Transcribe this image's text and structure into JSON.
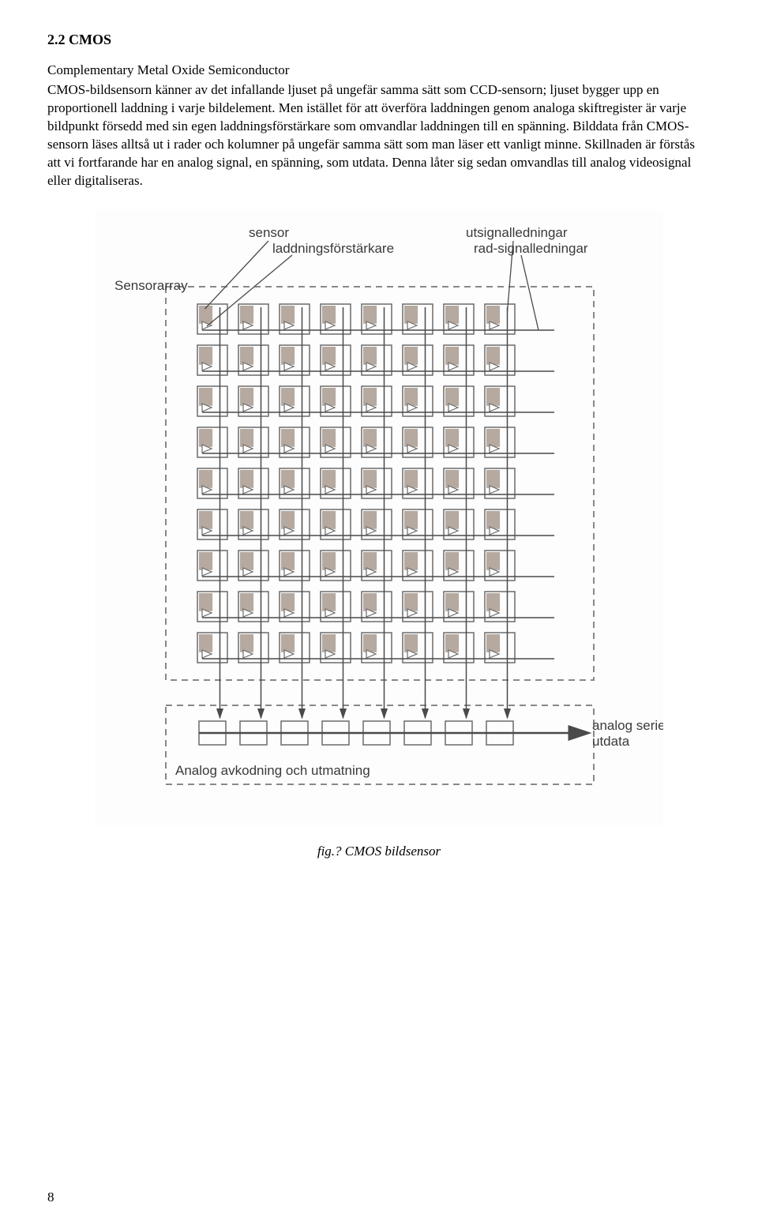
{
  "heading": "2.2 CMOS",
  "subtitle": "Complementary Metal Oxide Semiconductor",
  "body": "CMOS-bildsensorn känner av det infallande ljuset på ungefär samma sätt som CCD-sensorn; ljuset bygger upp en proportionell laddning i varje bildelement. Men istället för att överföra laddningen genom analoga skiftregister är varje bildpunkt försedd med sin egen laddningsförstärkare som omvandlar laddningen till en spänning. Bilddata från CMOS-sensorn läses alltså ut i rader och kolumner på ungefär samma sätt som man läser ett vanligt minne. Skillnaden är förstås att vi fortfarande har en analog signal, en spänning, som utdata. Denna låter sig sedan omvandlas till analog videosignal eller digitaliseras.",
  "diagram": {
    "labels": {
      "sensor": "sensor",
      "amplifier": "laddningsförstärkare",
      "out_lines": "utsignalledningar",
      "row_lines": "rad-signalledningar",
      "array": "Sensorarray",
      "analog_serial": "analog seriell",
      "utdata": "utdata",
      "decoding": "Analog avkodning och utmatning"
    },
    "grid": {
      "rows": 9,
      "cols": 8
    },
    "colors": {
      "sensor_fill": "#b5a9a0",
      "cell_stroke": "#6b6b6b",
      "line": "#4a4a4a",
      "dash": "#888888",
      "bg": "#fdfdfd",
      "text": "#3a3a3a"
    },
    "cell_size": 38,
    "cell_gap": 14,
    "font_size": 17
  },
  "caption": "fig.? CMOS bildsensor",
  "page_number": "8"
}
